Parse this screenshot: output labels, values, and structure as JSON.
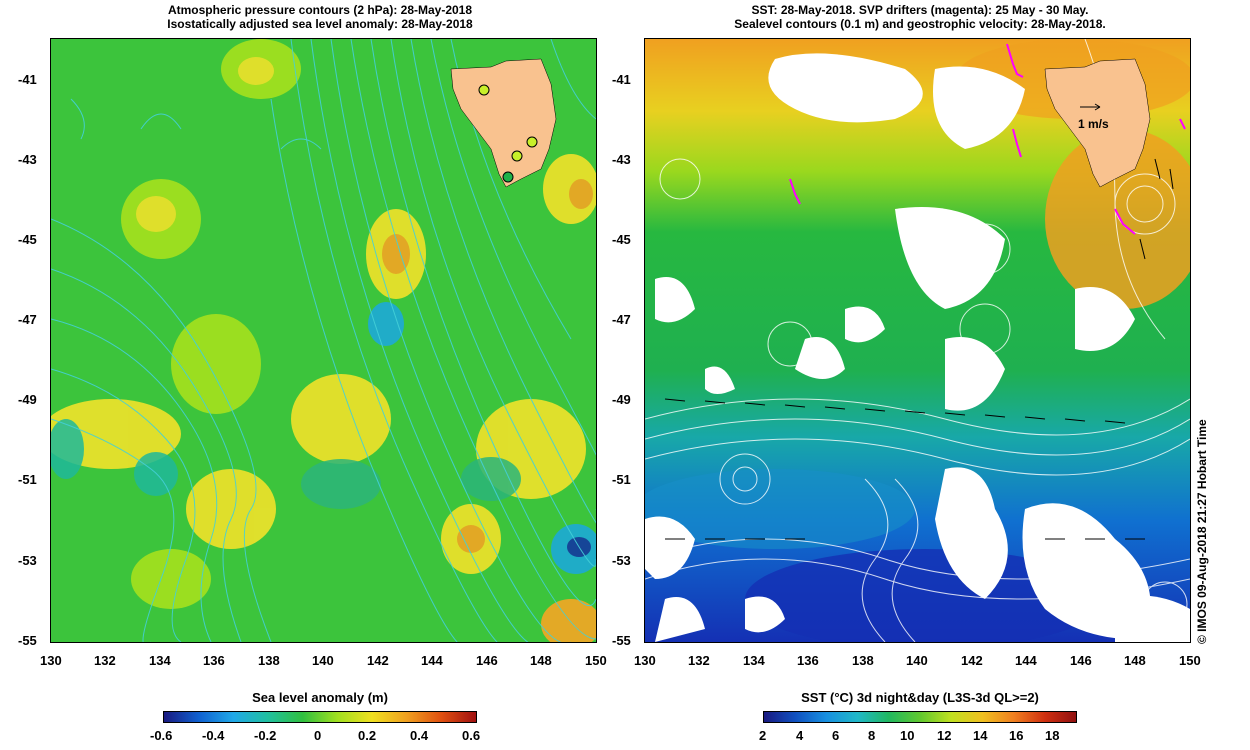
{
  "left_panel": {
    "title_line1": "Atmospheric pressure contours (2 hPa): 28-May-2018",
    "title_line2": "Isostatically adjusted sea level anomaly: 28-May-2018",
    "colorbar_title": "Sea level anomaly (m)",
    "colorbar_ticks": [
      "-0.6",
      "-0.4",
      "-0.2",
      "0",
      "0.2",
      "0.4",
      "0.6"
    ]
  },
  "right_panel": {
    "title_line1": "SST: 28-May-2018. SVP drifters (magenta): 25 May - 30 May.",
    "title_line2": "Sealevel contours (0.1 m) and geostrophic velocity: 28-May-2018.",
    "velocity_scale_label": "1 m/s",
    "colorbar_title": "SST (°C) 3d night&day (L3S-3d QL>=2)",
    "colorbar_ticks": [
      "2",
      "4",
      "6",
      "8",
      "10",
      "12",
      "14",
      "16",
      "18"
    ]
  },
  "axes": {
    "lon_ticks": [
      "130",
      "132",
      "134",
      "136",
      "138",
      "140",
      "142",
      "144",
      "146",
      "148",
      "150"
    ],
    "lat_ticks": [
      "-41",
      "-43",
      "-45",
      "-47",
      "-49",
      "-51",
      "-53",
      "-55"
    ]
  },
  "credit": "© IMOS 09-Aug-2018 21:27 Hobart Time",
  "colors": {
    "land": "#f9c28f",
    "pressure_contour": "#44d0d8",
    "drifter": "#ff00ff",
    "sla_base": "#3bc83b",
    "sst_cold": "#1430b4",
    "sst_warm": "#f0a020"
  }
}
